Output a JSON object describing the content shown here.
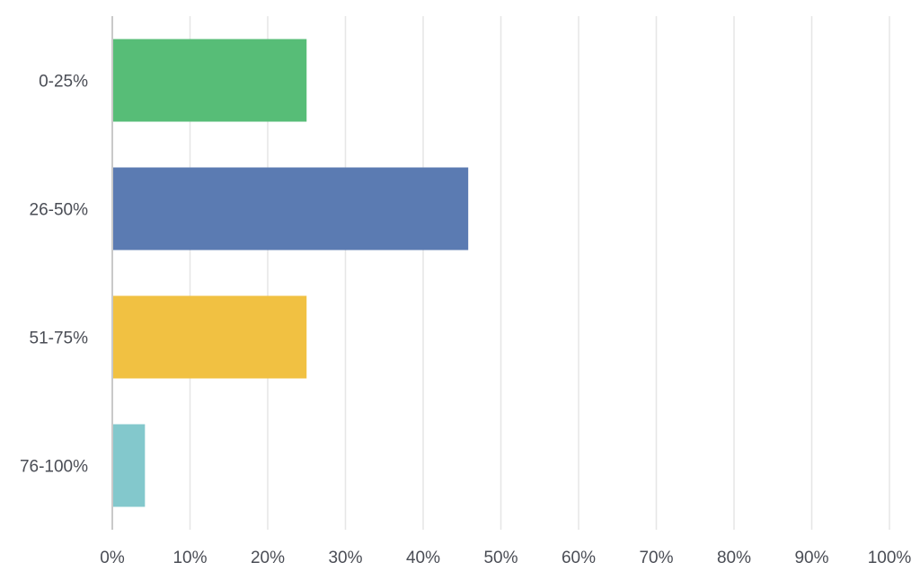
{
  "chart_data": {
    "type": "bar",
    "orientation": "horizontal",
    "categories": [
      "0-25%",
      "26-50%",
      "51-75%",
      "76-100%"
    ],
    "values": [
      25,
      45.8,
      25,
      4.2
    ],
    "colors": [
      "#57bd77",
      "#5b7bb2",
      "#f1c142",
      "#83c8cc"
    ],
    "xlim": [
      0,
      100
    ],
    "xticks": [
      0,
      10,
      20,
      30,
      40,
      50,
      60,
      70,
      80,
      90,
      100
    ],
    "tick_suffix": "%",
    "title": "",
    "xlabel": "",
    "ylabel": "",
    "grid": true,
    "legend": "none"
  }
}
